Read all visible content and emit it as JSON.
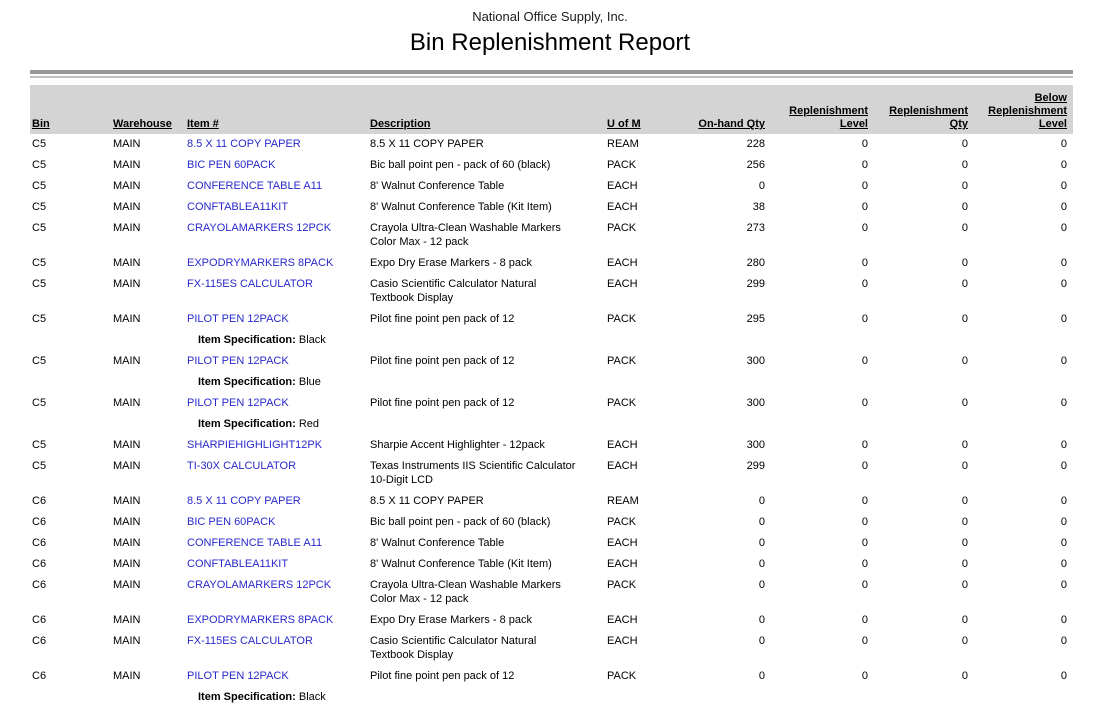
{
  "report": {
    "company": "National Office Supply, Inc.",
    "title": "Bin Replenishment Report"
  },
  "colors": {
    "item_link": "#2929cc",
    "header_bg": "#d4d4d4",
    "rule_dark": "#999999",
    "rule_light": "#c2c2c2"
  },
  "table": {
    "columns": [
      {
        "key": "bin",
        "label": "Bin",
        "align": "left"
      },
      {
        "key": "warehouse",
        "label": "Warehouse",
        "align": "left"
      },
      {
        "key": "item",
        "label": "Item #",
        "align": "left"
      },
      {
        "key": "description",
        "label": "Description",
        "align": "left"
      },
      {
        "key": "uom",
        "label": "U of M",
        "align": "left"
      },
      {
        "key": "onhand",
        "label": "On-hand Qty",
        "align": "right"
      },
      {
        "key": "repl_level",
        "label": "Replenishment\nLevel",
        "align": "right"
      },
      {
        "key": "repl_qty",
        "label": "Replenishment\nQty",
        "align": "right"
      },
      {
        "key": "below",
        "label": "Below\nReplenishment\nLevel",
        "align": "right"
      }
    ],
    "spec_label": "Item Specification:",
    "rows": [
      {
        "bin": "C5",
        "warehouse": "MAIN",
        "item": "8.5 X 11 COPY PAPER",
        "description": "8.5 X 11 COPY PAPER",
        "uom": "REAM",
        "onhand": "228",
        "repl_level": "0",
        "repl_qty": "0",
        "below": "0"
      },
      {
        "bin": "C5",
        "warehouse": "MAIN",
        "item": "BIC PEN 60PACK",
        "description": "Bic ball point pen - pack of 60 (black)",
        "uom": "PACK",
        "onhand": "256",
        "repl_level": "0",
        "repl_qty": "0",
        "below": "0"
      },
      {
        "bin": "C5",
        "warehouse": "MAIN",
        "item": "CONFERENCE TABLE A11",
        "description": "8' Walnut Conference Table",
        "uom": "EACH",
        "onhand": "0",
        "repl_level": "0",
        "repl_qty": "0",
        "below": "0"
      },
      {
        "bin": "C5",
        "warehouse": "MAIN",
        "item": "CONFTABLEA11KIT",
        "description": "8' Walnut Conference Table (Kit Item)",
        "uom": "EACH",
        "onhand": "38",
        "repl_level": "0",
        "repl_qty": "0",
        "below": "0"
      },
      {
        "bin": "C5",
        "warehouse": "MAIN",
        "item": "CRAYOLAMARKERS 12PCK",
        "description": "Crayola Ultra-Clean Washable Markers Color Max - 12 pack",
        "uom": "PACK",
        "onhand": "273",
        "repl_level": "0",
        "repl_qty": "0",
        "below": "0"
      },
      {
        "bin": "C5",
        "warehouse": "MAIN",
        "item": "EXPODRYMARKERS 8PACK",
        "description": "Expo Dry Erase Markers - 8 pack",
        "uom": "EACH",
        "onhand": "280",
        "repl_level": "0",
        "repl_qty": "0",
        "below": "0"
      },
      {
        "bin": "C5",
        "warehouse": "MAIN",
        "item": "FX-115ES CALCULATOR",
        "description": "Casio Scientific Calculator Natural Textbook Display",
        "uom": "EACH",
        "onhand": "299",
        "repl_level": "0",
        "repl_qty": "0",
        "below": "0"
      },
      {
        "bin": "C5",
        "warehouse": "MAIN",
        "item": "PILOT PEN 12PACK",
        "description": "Pilot fine point pen pack of 12",
        "uom": "PACK",
        "onhand": "295",
        "repl_level": "0",
        "repl_qty": "0",
        "below": "0",
        "spec": "Black"
      },
      {
        "bin": "C5",
        "warehouse": "MAIN",
        "item": "PILOT PEN 12PACK",
        "description": "Pilot fine point pen pack of 12",
        "uom": "PACK",
        "onhand": "300",
        "repl_level": "0",
        "repl_qty": "0",
        "below": "0",
        "spec": "Blue"
      },
      {
        "bin": "C5",
        "warehouse": "MAIN",
        "item": "PILOT PEN 12PACK",
        "description": "Pilot fine point pen pack of 12",
        "uom": "PACK",
        "onhand": "300",
        "repl_level": "0",
        "repl_qty": "0",
        "below": "0",
        "spec": "Red"
      },
      {
        "bin": "C5",
        "warehouse": "MAIN",
        "item": "SHARPIEHIGHLIGHT12PK",
        "description": "Sharpie Accent Highlighter - 12pack",
        "uom": "EACH",
        "onhand": "300",
        "repl_level": "0",
        "repl_qty": "0",
        "below": "0"
      },
      {
        "bin": "C5",
        "warehouse": "MAIN",
        "item": "TI-30X CALCULATOR",
        "description": "Texas Instruments IIS Scientific Calculator 10-Digit LCD",
        "uom": "EACH",
        "onhand": "299",
        "repl_level": "0",
        "repl_qty": "0",
        "below": "0"
      },
      {
        "bin": "C6",
        "warehouse": "MAIN",
        "item": "8.5 X 11 COPY PAPER",
        "description": "8.5 X 11 COPY PAPER",
        "uom": "REAM",
        "onhand": "0",
        "repl_level": "0",
        "repl_qty": "0",
        "below": "0"
      },
      {
        "bin": "C6",
        "warehouse": "MAIN",
        "item": "BIC PEN 60PACK",
        "description": "Bic ball point pen - pack of 60 (black)",
        "uom": "PACK",
        "onhand": "0",
        "repl_level": "0",
        "repl_qty": "0",
        "below": "0"
      },
      {
        "bin": "C6",
        "warehouse": "MAIN",
        "item": "CONFERENCE TABLE A11",
        "description": "8' Walnut Conference Table",
        "uom": "EACH",
        "onhand": "0",
        "repl_level": "0",
        "repl_qty": "0",
        "below": "0"
      },
      {
        "bin": "C6",
        "warehouse": "MAIN",
        "item": "CONFTABLEA11KIT",
        "description": "8' Walnut Conference Table (Kit Item)",
        "uom": "EACH",
        "onhand": "0",
        "repl_level": "0",
        "repl_qty": "0",
        "below": "0"
      },
      {
        "bin": "C6",
        "warehouse": "MAIN",
        "item": "CRAYOLAMARKERS 12PCK",
        "description": "Crayola Ultra-Clean Washable Markers Color Max - 12 pack",
        "uom": "PACK",
        "onhand": "0",
        "repl_level": "0",
        "repl_qty": "0",
        "below": "0"
      },
      {
        "bin": "C6",
        "warehouse": "MAIN",
        "item": "EXPODRYMARKERS 8PACK",
        "description": "Expo Dry Erase Markers - 8 pack",
        "uom": "EACH",
        "onhand": "0",
        "repl_level": "0",
        "repl_qty": "0",
        "below": "0"
      },
      {
        "bin": "C6",
        "warehouse": "MAIN",
        "item": "FX-115ES CALCULATOR",
        "description": "Casio Scientific Calculator Natural Textbook Display",
        "uom": "EACH",
        "onhand": "0",
        "repl_level": "0",
        "repl_qty": "0",
        "below": "0"
      },
      {
        "bin": "C6",
        "warehouse": "MAIN",
        "item": "PILOT PEN 12PACK",
        "description": "Pilot fine point pen pack of 12",
        "uom": "PACK",
        "onhand": "0",
        "repl_level": "0",
        "repl_qty": "0",
        "below": "0",
        "spec": "Black"
      }
    ]
  }
}
